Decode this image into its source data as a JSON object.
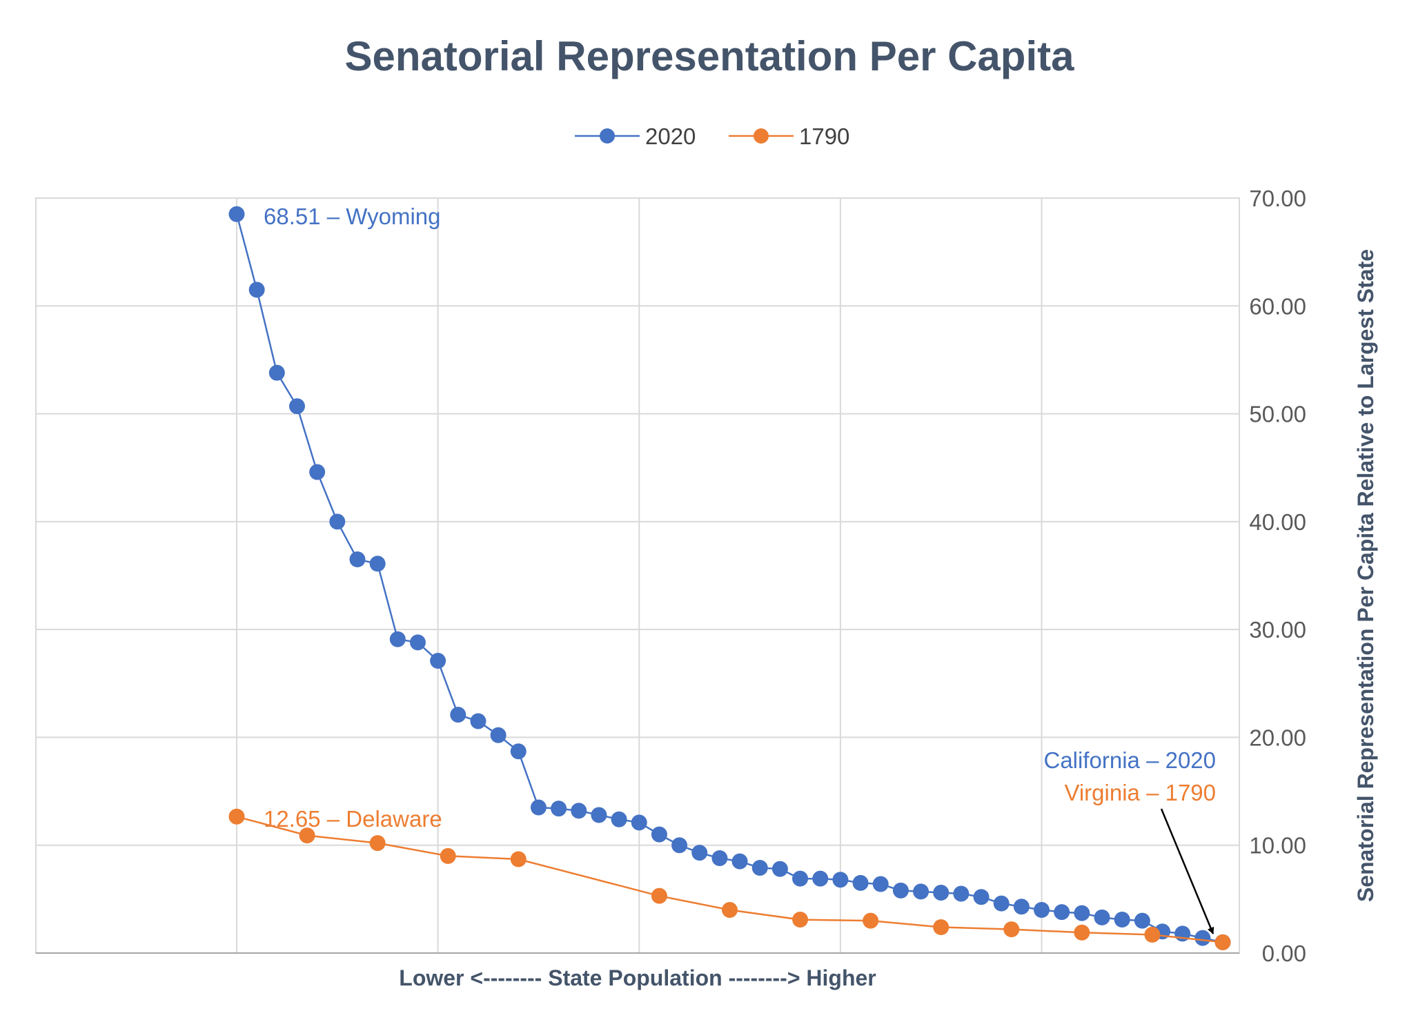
{
  "chart_data": {
    "type": "line",
    "title": "Senatorial Representation Per Capita",
    "xlabel": "Lower <-------- State Population --------> Higher",
    "ylabel": "Senatorial Representation Per Capita Relative to Largest State",
    "ylim": [
      0,
      70
    ],
    "yticks": [
      "0.00",
      "10.00",
      "20.00",
      "30.00",
      "40.00",
      "50.00",
      "60.00",
      "70.00"
    ],
    "x_index_range": [
      1,
      50
    ],
    "legend_position": "top-center",
    "series": [
      {
        "name": "2020",
        "color": "#4472c4",
        "x": [
          1,
          2,
          3,
          4,
          5,
          6,
          7,
          8,
          9,
          10,
          11,
          12,
          13,
          14,
          15,
          16,
          17,
          18,
          19,
          20,
          21,
          22,
          23,
          24,
          25,
          26,
          27,
          28,
          29,
          30,
          31,
          32,
          33,
          34,
          35,
          36,
          37,
          38,
          39,
          40,
          41,
          42,
          43,
          44,
          45,
          46,
          47,
          48,
          49,
          50
        ],
        "values": [
          68.51,
          61.5,
          53.8,
          50.7,
          44.6,
          40.0,
          36.5,
          36.1,
          29.1,
          28.8,
          27.1,
          22.1,
          21.5,
          20.2,
          18.7,
          13.5,
          13.4,
          13.2,
          12.8,
          12.4,
          12.1,
          11.0,
          10.0,
          9.3,
          8.8,
          8.5,
          7.9,
          7.8,
          6.9,
          6.9,
          6.8,
          6.5,
          6.4,
          5.8,
          5.7,
          5.6,
          5.5,
          5.2,
          4.6,
          4.3,
          4.0,
          3.8,
          3.7,
          3.3,
          3.1,
          3.0,
          2.0,
          1.8,
          1.4,
          1.0
        ]
      },
      {
        "name": "1790",
        "color": "#ed7d31",
        "x": [
          1,
          4.5,
          8,
          11.5,
          15,
          22,
          25.5,
          29,
          32.5,
          36,
          39.5,
          43,
          46.5,
          50
        ],
        "values": [
          12.65,
          10.9,
          10.2,
          9.0,
          8.7,
          5.3,
          4.0,
          3.1,
          3.0,
          2.4,
          2.2,
          1.9,
          1.7,
          1.0
        ]
      }
    ],
    "annotations": {
      "max_2020": "68.51 – Wyoming",
      "max_1790": "12.65 – Delaware",
      "min_2020": "California – 2020",
      "min_1790": "Virginia – 1790"
    }
  }
}
